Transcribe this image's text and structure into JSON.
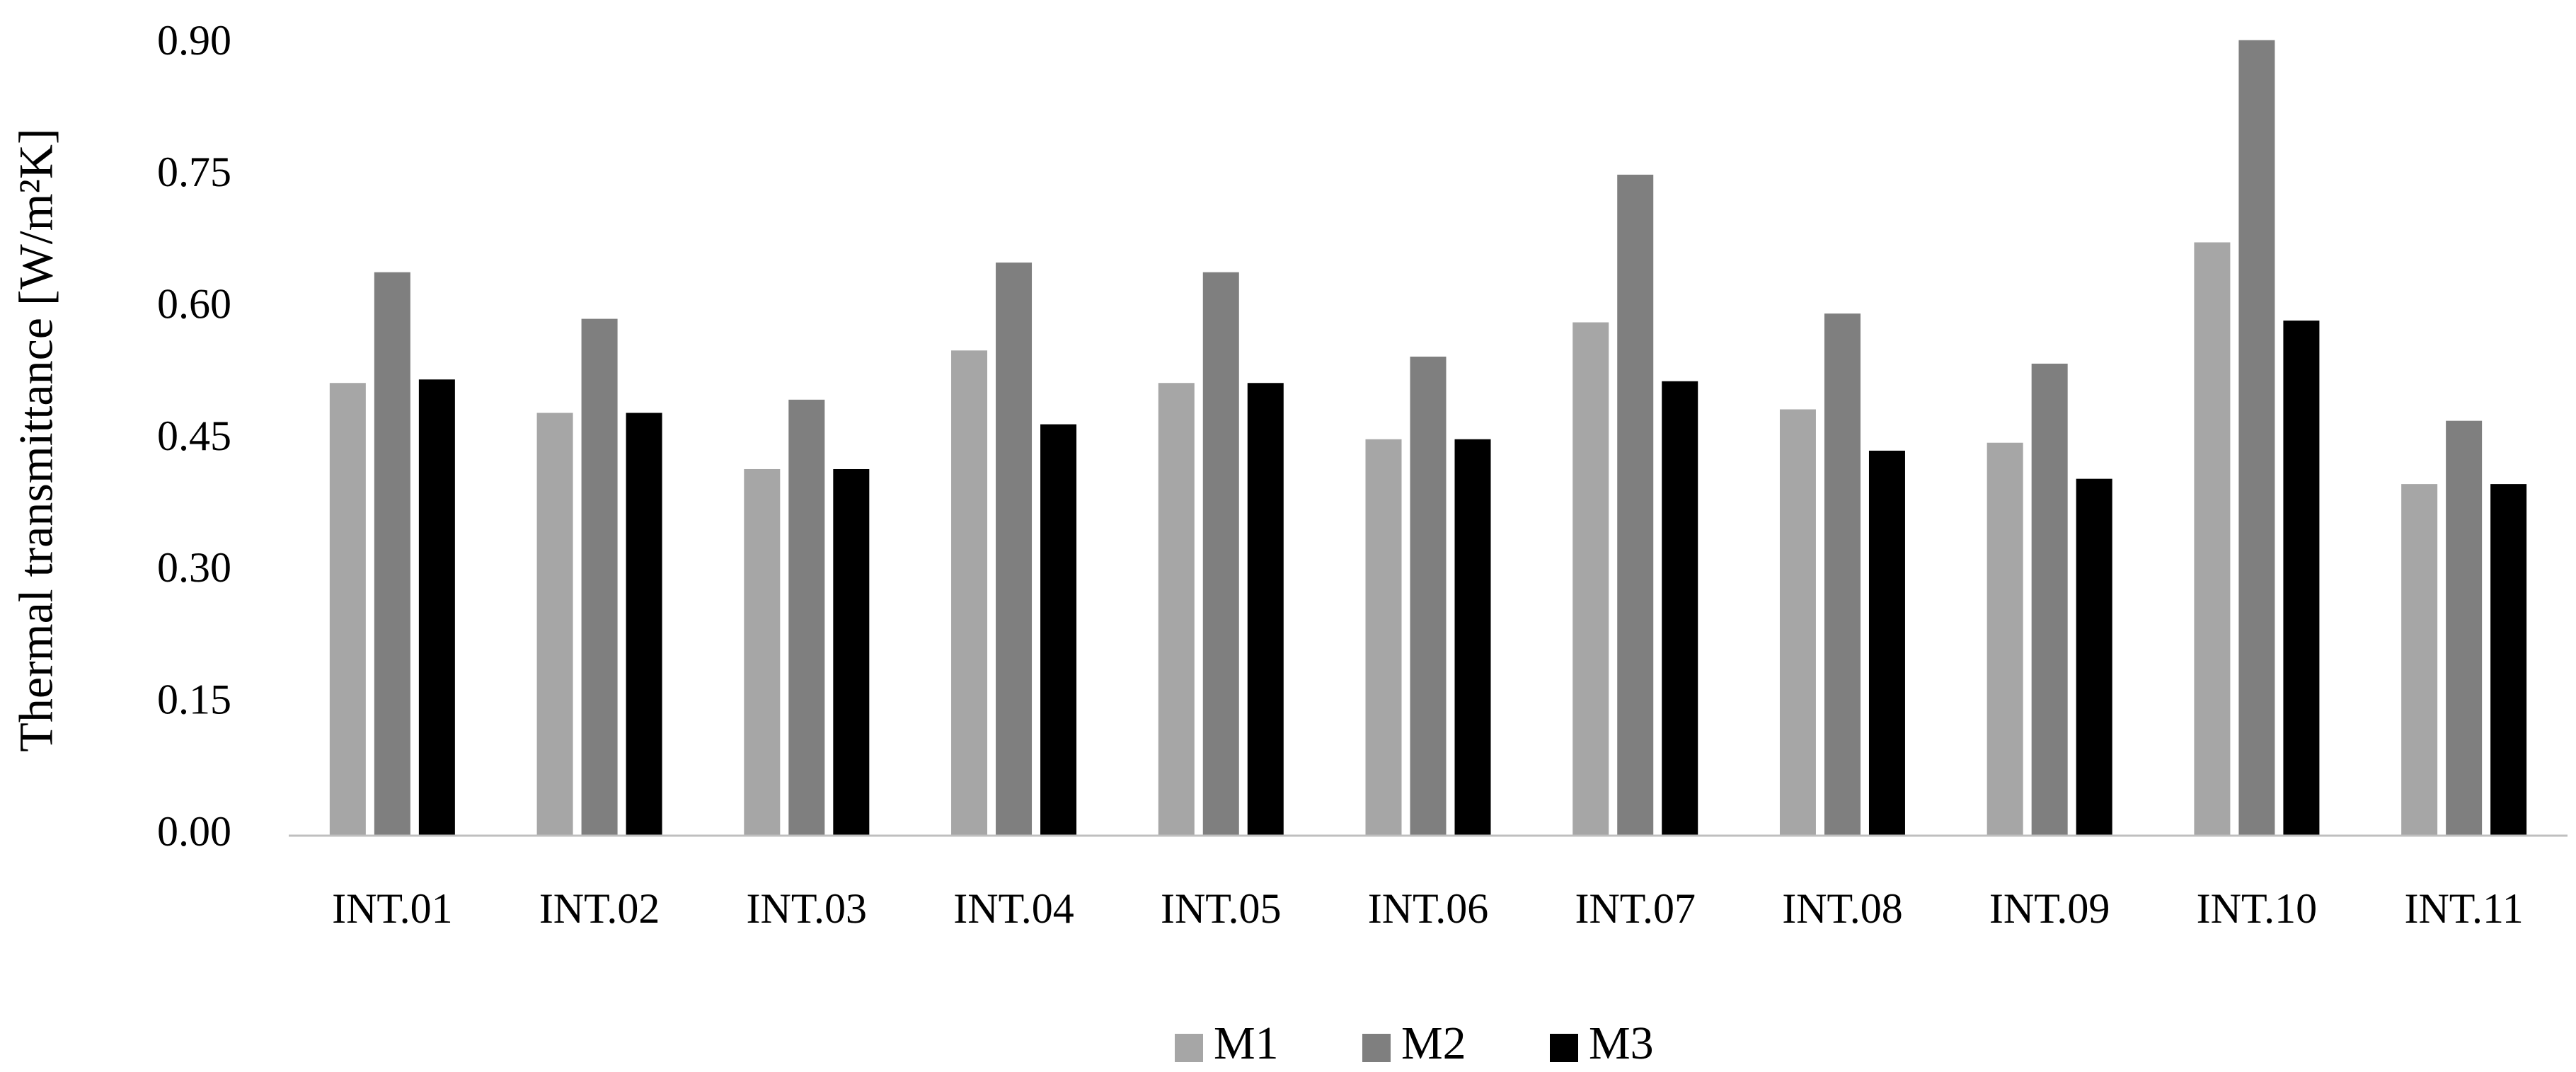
{
  "chart_data": {
    "type": "bar",
    "y_label": "Thermal transmittance [W/m²K]",
    "categories": [
      "INT.01",
      "INT.02",
      "INT.03",
      "INT.04",
      "INT.05",
      "INT.06",
      "INT.07",
      "INT.08",
      "INT.09",
      "INT.10",
      "INT.11"
    ],
    "series": [
      {
        "name": "M1",
        "color": "#a6a6a6",
        "values": [
          0.515,
          0.481,
          0.417,
          0.552,
          0.515,
          0.451,
          0.584,
          0.485,
          0.447,
          0.675,
          0.4
        ]
      },
      {
        "name": "M2",
        "color": "#7f7f7f",
        "values": [
          0.641,
          0.588,
          0.496,
          0.652,
          0.641,
          0.545,
          0.752,
          0.594,
          0.537,
          0.905,
          0.472
        ]
      },
      {
        "name": "M3",
        "color": "#000000",
        "values": [
          0.519,
          0.481,
          0.417,
          0.468,
          0.515,
          0.451,
          0.517,
          0.438,
          0.406,
          0.586,
          0.4
        ]
      }
    ],
    "ylim": [
      0,
      0.9
    ],
    "yticks": [
      {
        "value": 0,
        "label": "0.00"
      },
      {
        "value": 0.15,
        "label": "0.15"
      },
      {
        "value": 0.3,
        "label": "0.30"
      },
      {
        "value": 0.45,
        "label": "0.45"
      },
      {
        "value": 0.6,
        "label": "0.60"
      },
      {
        "value": 0.75,
        "label": "0.75"
      },
      {
        "value": 0.9,
        "label": "0.90"
      }
    ],
    "grid": false,
    "legend": "bottom"
  }
}
